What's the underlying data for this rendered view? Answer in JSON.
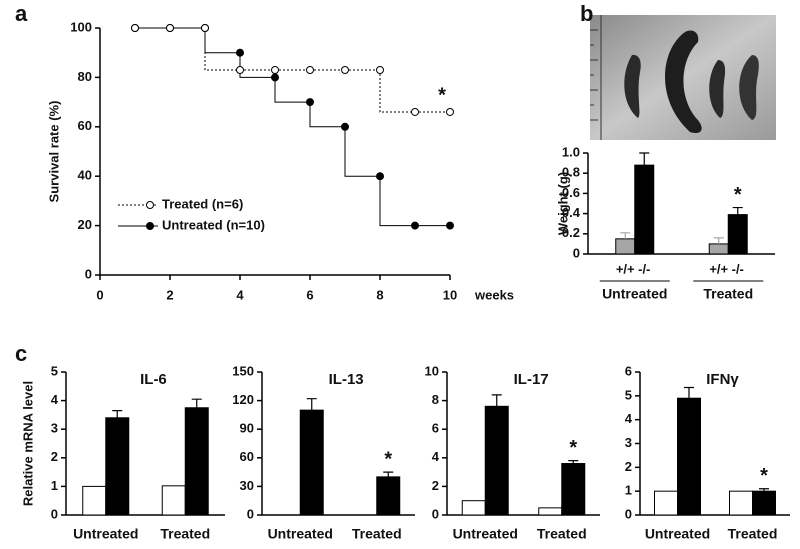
{
  "chart_data": [
    {
      "type": "line",
      "panel": "a",
      "ylabel": "Survival rate (%)",
      "xlabel": "weeks",
      "x": [
        1,
        2,
        3,
        4,
        5,
        6,
        7,
        8,
        9,
        10
      ],
      "series": [
        {
          "name": "Untreated (n=10)",
          "color": "#000000",
          "style": "solid",
          "marker": "filled",
          "values": [
            100,
            100,
            100,
            90,
            80,
            70,
            60,
            40,
            20,
            20
          ]
        },
        {
          "name": "Treated (n=6)",
          "color": "#000000",
          "style": "dotted",
          "marker": "open",
          "values": [
            100,
            100,
            100,
            83,
            83,
            83,
            83,
            83,
            66,
            66
          ]
        }
      ],
      "xlim": [
        0,
        10
      ],
      "xticks": [
        0,
        2,
        4,
        6,
        8,
        10
      ],
      "ylim": [
        0,
        100
      ],
      "yticks": [
        0,
        20,
        40,
        60,
        80,
        100
      ],
      "annotation": "*",
      "grid": false
    },
    {
      "type": "bar",
      "panel": "b",
      "ylabel": "Weight (g)",
      "categories": [
        "Untreated",
        "Treated"
      ],
      "series": [
        {
          "name": "+/+",
          "color": "#a6a6a6",
          "values": [
            0.15,
            0.1
          ],
          "errors": [
            0.06,
            0.06
          ]
        },
        {
          "name": "-/-",
          "color": "#000000",
          "values": [
            0.88,
            0.39
          ],
          "errors": [
            0.12,
            0.07
          ]
        }
      ],
      "ylim": [
        0,
        1
      ],
      "yticks": [
        0,
        0.2,
        0.4,
        0.6,
        0.8,
        {
          "value": 1,
          "label": "1.0"
        }
      ],
      "annotation": "*",
      "grid": false
    },
    {
      "type": "bar",
      "panel": "c",
      "title": "IL-6",
      "ylabel": "Relative mRNA  level",
      "categories": [
        "Untreated",
        "Treated"
      ],
      "series": [
        {
          "color": "#ffffff",
          "values": [
            1,
            1.02
          ]
        },
        {
          "color": "#000000",
          "values": [
            3.4,
            3.75
          ],
          "errors": [
            0.25,
            0.3
          ]
        }
      ],
      "ylim": [
        0,
        5
      ],
      "yticks": [
        0,
        1,
        2,
        3,
        4,
        5
      ],
      "grid": false
    },
    {
      "type": "bar",
      "title": "IL-13",
      "categories": [
        "Untreated",
        "Treated"
      ],
      "series": [
        {
          "color": "#ffffff",
          "values": [
            0,
            0
          ]
        },
        {
          "color": "#000000",
          "values": [
            110,
            40
          ],
          "errors": [
            12,
            5
          ]
        }
      ],
      "ylim": [
        0,
        150
      ],
      "yticks": [
        0,
        30,
        60,
        90,
        120,
        150
      ],
      "annotation": "*",
      "grid": false
    },
    {
      "type": "bar",
      "title": "IL-17",
      "categories": [
        "Untreated",
        "Treated"
      ],
      "series": [
        {
          "color": "#ffffff",
          "values": [
            1,
            0.5
          ]
        },
        {
          "color": "#000000",
          "values": [
            7.6,
            3.6
          ],
          "errors": [
            0.8,
            0.2
          ]
        }
      ],
      "ylim": [
        0,
        10
      ],
      "yticks": [
        0,
        2,
        4,
        6,
        8,
        10
      ],
      "annotation": "*",
      "grid": false
    },
    {
      "type": "bar",
      "title": "IFNγ",
      "categories": [
        "Untreated",
        "Treated"
      ],
      "series": [
        {
          "color": "#ffffff",
          "values": [
            1,
            1
          ]
        },
        {
          "color": "#000000",
          "values": [
            4.9,
            1.0
          ],
          "errors": [
            0.45,
            0.1
          ]
        }
      ],
      "ylim": [
        0,
        6
      ],
      "yticks": [
        0,
        1,
        2,
        3,
        4,
        5,
        6
      ],
      "annotation": "*",
      "grid": false
    }
  ]
}
